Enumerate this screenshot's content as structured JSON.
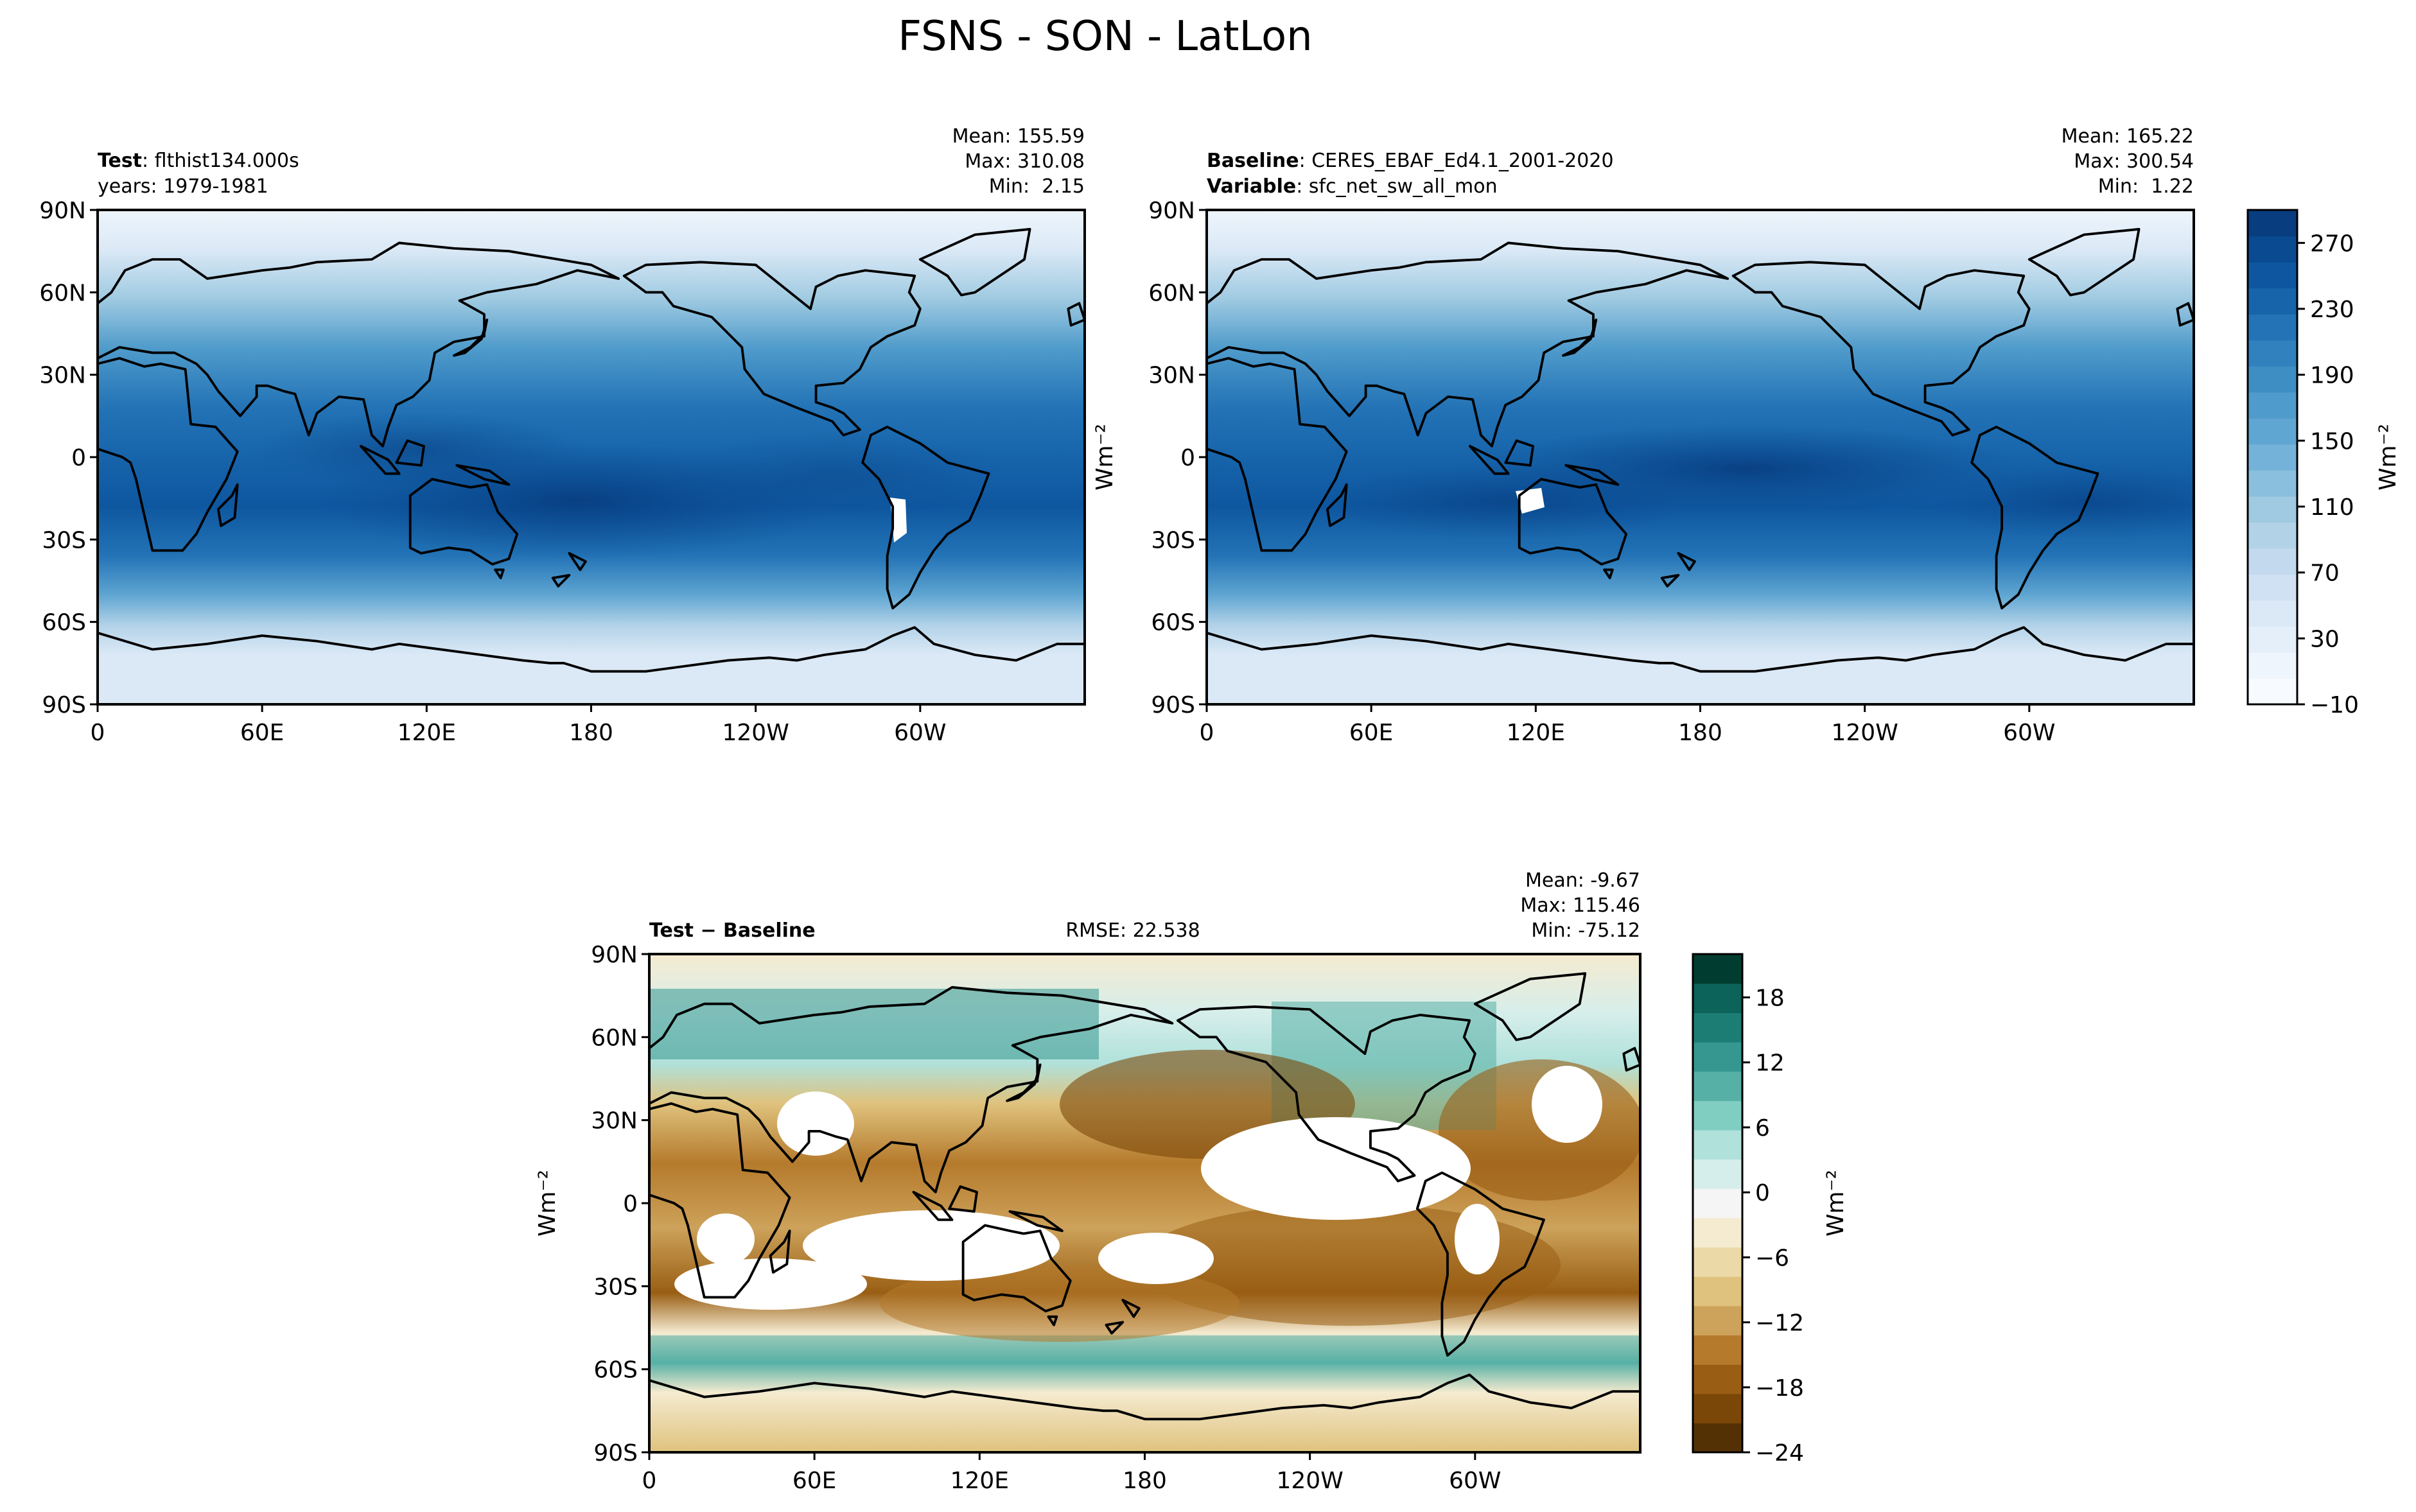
{
  "figure": {
    "title": "FSNS - SON - LatLon"
  },
  "chart_data": [
    {
      "id": "test",
      "type": "heatmap",
      "header_left": [
        {
          "bold": "Test",
          "text": ": flthist134.000s"
        },
        {
          "bold": "",
          "text": "years: 1979-1981"
        }
      ],
      "stats": [
        "Mean: 155.59",
        "Max: 310.08",
        "Min:  2.15"
      ],
      "xlabel": "",
      "ylabel": "",
      "x_ticks": [
        {
          "lon": 0,
          "label": "0"
        },
        {
          "lon": 60,
          "label": "60E"
        },
        {
          "lon": 120,
          "label": "120E"
        },
        {
          "lon": 180,
          "label": "180"
        },
        {
          "lon": 240,
          "label": "120W"
        },
        {
          "lon": 300,
          "label": "60W"
        }
      ],
      "y_ticks": [
        {
          "lat": 90,
          "label": "90N"
        },
        {
          "lat": 60,
          "label": "60N"
        },
        {
          "lat": 30,
          "label": "30N"
        },
        {
          "lat": 0,
          "label": "0"
        },
        {
          "lat": -30,
          "label": "30S"
        },
        {
          "lat": -60,
          "label": "60S"
        },
        {
          "lat": -90,
          "label": "90S"
        }
      ],
      "xlim": [
        0,
        360
      ],
      "ylim": [
        -90,
        90
      ],
      "colormap": "Blues",
      "stats_values": {
        "mean": 155.59,
        "max": 310.08,
        "min": 2.15
      }
    },
    {
      "id": "baseline",
      "type": "heatmap",
      "header_left": [
        {
          "bold": "Baseline",
          "text": ": CERES_EBAF_Ed4.1_2001-2020"
        },
        {
          "bold": "Variable",
          "text": ": sfc_net_sw_all_mon"
        }
      ],
      "stats": [
        "Mean: 165.22",
        "Max: 300.54",
        "Min:  1.22"
      ],
      "xlabel": "",
      "ylabel": "",
      "x_ticks": [
        {
          "lon": 0,
          "label": "0"
        },
        {
          "lon": 60,
          "label": "60E"
        },
        {
          "lon": 120,
          "label": "120E"
        },
        {
          "lon": 180,
          "label": "180"
        },
        {
          "lon": 240,
          "label": "120W"
        },
        {
          "lon": 300,
          "label": "60W"
        }
      ],
      "y_ticks": [
        {
          "lat": 90,
          "label": "90N"
        },
        {
          "lat": 60,
          "label": "60N"
        },
        {
          "lat": 30,
          "label": "30N"
        },
        {
          "lat": 0,
          "label": "0"
        },
        {
          "lat": -30,
          "label": "30S"
        },
        {
          "lat": -60,
          "label": "60S"
        },
        {
          "lat": -90,
          "label": "90S"
        }
      ],
      "xlim": [
        0,
        360
      ],
      "ylim": [
        -90,
        90
      ],
      "colormap": "Blues",
      "stats_values": {
        "mean": 165.22,
        "max": 300.54,
        "min": 1.22
      },
      "colorbar": {
        "label": "Wm⁻²",
        "min": -10,
        "max": 290,
        "ticks": [
          -10,
          30,
          70,
          110,
          150,
          190,
          230,
          270
        ],
        "tick_labels": [
          "−10",
          "30",
          "70",
          "110",
          "150",
          "190",
          "230",
          "270"
        ],
        "colors": [
          "#f7fbff",
          "#eef5fc",
          "#e4eff9",
          "#dbe9f6",
          "#cfe1f2",
          "#c2d9ee",
          "#b2d2e8",
          "#9fcae1",
          "#8abfdd",
          "#74b2d9",
          "#60a6d2",
          "#4f9bcb",
          "#3e8ec4",
          "#3081bd",
          "#2373b6",
          "#1764ab",
          "#0e57a0",
          "#0a4a90",
          "#083d7f"
        ]
      }
    },
    {
      "id": "diff",
      "type": "heatmap",
      "header_left": [
        {
          "bold": "Test − Baseline",
          "text": ""
        }
      ],
      "header_center": "RMSE: 22.538",
      "stats": [
        "Mean: -9.67",
        "Max: 115.46",
        "Min: -75.12"
      ],
      "xlabel": "",
      "ylabel": "Wm⁻²",
      "x_ticks": [
        {
          "lon": 0,
          "label": "0"
        },
        {
          "lon": 60,
          "label": "60E"
        },
        {
          "lon": 120,
          "label": "120E"
        },
        {
          "lon": 180,
          "label": "180"
        },
        {
          "lon": 240,
          "label": "120W"
        },
        {
          "lon": 300,
          "label": "60W"
        }
      ],
      "y_ticks": [
        {
          "lat": 90,
          "label": "90N"
        },
        {
          "lat": 60,
          "label": "60N"
        },
        {
          "lat": 30,
          "label": "30N"
        },
        {
          "lat": 0,
          "label": "0"
        },
        {
          "lat": -30,
          "label": "30S"
        },
        {
          "lat": -60,
          "label": "60S"
        },
        {
          "lat": -90,
          "label": "90S"
        }
      ],
      "xlim": [
        0,
        360
      ],
      "ylim": [
        -90,
        90
      ],
      "colormap": "BrBG",
      "stats_values": {
        "mean": -9.67,
        "max": 115.46,
        "min": -75.12,
        "rmse": 22.538
      },
      "colorbar": {
        "label": "Wm⁻²",
        "min": -24,
        "max": 22,
        "ticks": [
          -24,
          -18,
          -12,
          -6,
          0,
          6,
          12,
          18
        ],
        "tick_labels": [
          "−24",
          "−18",
          "−12",
          "−6",
          "0",
          "6",
          "12",
          "18"
        ],
        "colors": [
          "#543005",
          "#7b4709",
          "#995e14",
          "#b57a2c",
          "#cda25a",
          "#dfc27d",
          "#ecd9a8",
          "#f5ebd0",
          "#f5f5f5",
          "#d6eeeb",
          "#b0e1da",
          "#80cdc1",
          "#57b0a6",
          "#35978f",
          "#1c7d75",
          "#0b6359",
          "#003c30"
        ]
      },
      "white_regions_note": ""
    }
  ]
}
